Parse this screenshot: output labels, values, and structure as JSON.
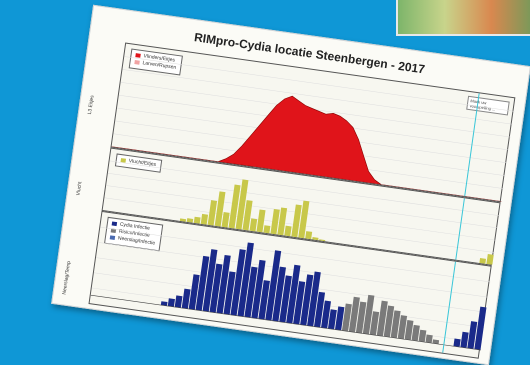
{
  "chart_data": [
    {
      "type": "area",
      "panel": "top",
      "ylabel": "L3 Eitjes",
      "legend": [
        "Vlinders/Eitjes",
        "Larven/Rupsen"
      ],
      "values": [
        0,
        0,
        0,
        0,
        0,
        0,
        0,
        0,
        0,
        0,
        0,
        0,
        0,
        0,
        0,
        0,
        2,
        5,
        10,
        16,
        22,
        28,
        34,
        38,
        40,
        38,
        36,
        35,
        34,
        33,
        34,
        33,
        31,
        28,
        22,
        14,
        6,
        2,
        0,
        0,
        0,
        0,
        0,
        0,
        0,
        0,
        0,
        0,
        0,
        0,
        0,
        0,
        0,
        0,
        0,
        0
      ]
    },
    {
      "type": "bar",
      "panel": "middle",
      "ylabel": "Vlucht",
      "legend": [
        "Vlucht/Eitjes"
      ],
      "values": [
        0,
        0,
        0,
        0,
        0,
        0,
        0,
        0,
        0,
        0,
        0,
        2,
        3,
        5,
        8,
        20,
        28,
        12,
        35,
        40,
        24,
        10,
        18,
        6,
        20,
        22,
        8,
        26,
        30,
        6,
        2,
        1,
        0,
        0,
        0,
        0,
        0,
        0,
        0,
        0,
        0,
        0,
        0,
        0,
        0,
        0,
        0,
        0,
        0,
        0,
        0,
        0,
        0,
        0,
        4,
        8
      ]
    },
    {
      "type": "bar",
      "panel": "bottom",
      "ylabel": "Neerslag/Temp",
      "legend": [
        "Cydia Infectie",
        "Risico/Infectie",
        "Neerslag/Infectie"
      ],
      "series": [
        {
          "name": "Cydia Infectie",
          "values": [
            0,
            0,
            0,
            0,
            0,
            0,
            0,
            0,
            0,
            0,
            2,
            4,
            6,
            10,
            18,
            28,
            32,
            25,
            30,
            22,
            34,
            38,
            26,
            30,
            20,
            36,
            28,
            24,
            30,
            22,
            26,
            28,
            18,
            14,
            10,
            12,
            0,
            0,
            0,
            0,
            0,
            0,
            0,
            0,
            0,
            0,
            0,
            0,
            0,
            0,
            0,
            0,
            4,
            8,
            14,
            22
          ]
        },
        {
          "name": "Risico/Infectie",
          "values": [
            0,
            0,
            0,
            0,
            0,
            0,
            0,
            0,
            0,
            0,
            0,
            0,
            0,
            0,
            0,
            0,
            0,
            0,
            0,
            0,
            0,
            0,
            0,
            0,
            0,
            0,
            0,
            0,
            0,
            0,
            0,
            0,
            0,
            0,
            0,
            0,
            14,
            18,
            16,
            20,
            12,
            18,
            16,
            14,
            12,
            10,
            8,
            6,
            4,
            2,
            0,
            0,
            0,
            0,
            0,
            0
          ]
        }
      ]
    }
  ],
  "header": {
    "title": "RIMpro-Cydia locatie Steenbergen - 2017"
  },
  "note": {
    "text": "Maak uw voorspelling ..."
  },
  "colors": {
    "background": "#0f97d6",
    "area": "#e0141a",
    "yellow_bars": "#c8c84a",
    "navy_bars": "#1a2a8a",
    "grey_bars": "#7a7a7a",
    "marker_line": "#39c6d8"
  }
}
